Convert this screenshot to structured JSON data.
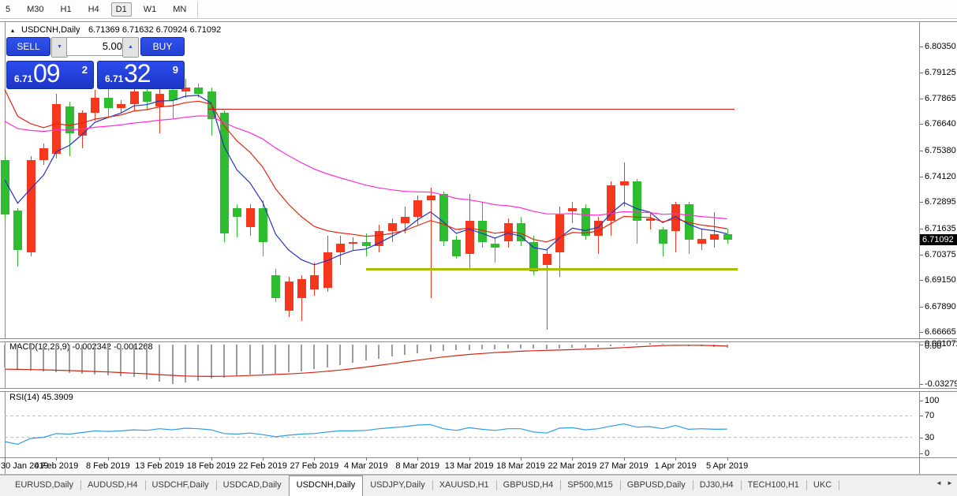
{
  "toolbar": {
    "timeframes": [
      "5",
      "M30",
      "H1",
      "H4",
      "D1",
      "W1",
      "MN"
    ],
    "active": "D1"
  },
  "title": {
    "collapse_icon": "▴",
    "symbol": "USDCNH,Daily",
    "ohlc_text": "6.71369 6.71632 6.70924 6.71092"
  },
  "trade_panel": {
    "sell_label": "SELL",
    "buy_label": "BUY",
    "volume": "5.00",
    "spin_down_icon": "▼",
    "spin_up_icon": "▲",
    "sell_price_prefix": "6.71",
    "sell_price_big": "09",
    "sell_price_sup": "2",
    "buy_price_prefix": "6.71",
    "buy_price_big": "32",
    "buy_price_sup": "9"
  },
  "price_axis": {
    "labels": [
      "6.80350",
      "6.79125",
      "6.77865",
      "6.76640",
      "6.75380",
      "6.74120",
      "6.72895",
      "6.71635",
      "6.70375",
      "6.69150",
      "6.67890",
      "6.66665"
    ],
    "current": "6.71092"
  },
  "indicators": {
    "macd": {
      "header": "MACD(12,26,9) -0.002342 -0.001268",
      "axis_max": "0.001072",
      "axis_zero": "0.00",
      "axis_min": "-0.032799"
    },
    "rsi": {
      "header": "RSI(14) 45.3909",
      "axis": [
        "100",
        "70",
        "30",
        "0"
      ]
    }
  },
  "date_axis": {
    "labels": [
      {
        "text": "30 Jan 2019",
        "index": 0
      },
      {
        "text": "4 Feb 2019",
        "index": 4
      },
      {
        "text": "8 Feb 2019",
        "index": 8
      },
      {
        "text": "13 Feb 2019",
        "index": 12
      },
      {
        "text": "18 Feb 2019",
        "index": 16
      },
      {
        "text": "22 Feb 2019",
        "index": 20
      },
      {
        "text": "27 Feb 2019",
        "index": 24
      },
      {
        "text": "4 Mar 2019",
        "index": 28
      },
      {
        "text": "8 Mar 2019",
        "index": 32
      },
      {
        "text": "13 Mar 2019",
        "index": 36
      },
      {
        "text": "18 Mar 2019",
        "index": 40
      },
      {
        "text": "22 Mar 2019",
        "index": 44
      },
      {
        "text": "27 Mar 2019",
        "index": 48
      },
      {
        "text": "1 Apr 2019",
        "index": 52
      },
      {
        "text": "5 Apr 2019",
        "index": 56
      }
    ]
  },
  "tabs": {
    "items": [
      "EURUSD,Daily",
      "AUDUSD,H4",
      "USDCHF,Daily",
      "USDCAD,Daily",
      "USDCNH,Daily",
      "USDJPY,Daily",
      "XAUUSD,H1",
      "GBPUSD,H4",
      "SP500,M15",
      "GBPUSD,Daily",
      "DJ30,H4",
      "TECH100,H1",
      "UKC"
    ],
    "active": "USDCNH,Daily",
    "scroll_left": "◄",
    "scroll_right": "►"
  },
  "colors": {
    "bull": "#f5381d",
    "bear": "#2ebd2e",
    "ma_fast": "#2431c7",
    "ma_mid": "#e8240c",
    "ma_slow": "#ff2fd0",
    "macd_hist": "#9c9c9c",
    "macd_signal": "#d42314",
    "rsi_line": "#2f9be3",
    "support": "#a9bf04",
    "resistance": "#d21616"
  },
  "chart_data": {
    "type": "candlestick",
    "symbol": "USDCNH",
    "timeframe": "Daily",
    "current_ohlc": {
      "open": 6.71369,
      "high": 6.71632,
      "low": 6.70924,
      "close": 6.71092
    },
    "y_axis_range": [
      6.6647,
      6.8145
    ],
    "candles": [
      {
        "d": "30 Jan",
        "o": 6.749,
        "h": 6.751,
        "l": 6.721,
        "c": 6.723
      },
      {
        "d": "31 Jan",
        "o": 6.725,
        "h": 6.726,
        "l": 6.698,
        "c": 6.706
      },
      {
        "d": "1 Feb",
        "o": 6.705,
        "h": 6.751,
        "l": 6.703,
        "c": 6.749
      },
      {
        "d": "3 Feb",
        "o": 6.749,
        "h": 6.757,
        "l": 6.747,
        "c": 6.755
      },
      {
        "d": "4 Feb",
        "o": 6.752,
        "h": 6.781,
        "l": 6.75,
        "c": 6.776
      },
      {
        "d": "5 Feb",
        "o": 6.775,
        "h": 6.777,
        "l": 6.751,
        "c": 6.762
      },
      {
        "d": "6 Feb",
        "o": 6.761,
        "h": 6.773,
        "l": 6.755,
        "c": 6.772
      },
      {
        "d": "7 Feb",
        "o": 6.772,
        "h": 6.783,
        "l": 6.768,
        "c": 6.779
      },
      {
        "d": "8 Feb",
        "o": 6.779,
        "h": 6.785,
        "l": 6.77,
        "c": 6.774
      },
      {
        "d": "10 Feb",
        "o": 6.774,
        "h": 6.778,
        "l": 6.772,
        "c": 6.776
      },
      {
        "d": "11 Feb",
        "o": 6.776,
        "h": 6.786,
        "l": 6.773,
        "c": 6.782
      },
      {
        "d": "12 Feb",
        "o": 6.782,
        "h": 6.786,
        "l": 6.773,
        "c": 6.777
      },
      {
        "d": "13 Feb",
        "o": 6.775,
        "h": 6.787,
        "l": 6.762,
        "c": 6.781
      },
      {
        "d": "14 Feb",
        "o": 6.783,
        "h": 6.785,
        "l": 6.769,
        "c": 6.778
      },
      {
        "d": "15 Feb",
        "o": 6.782,
        "h": 6.788,
        "l": 6.779,
        "c": 6.784
      },
      {
        "d": "17 Feb",
        "o": 6.784,
        "h": 6.786,
        "l": 6.779,
        "c": 6.781
      },
      {
        "d": "18 Feb",
        "o": 6.782,
        "h": 6.784,
        "l": 6.761,
        "c": 6.769
      },
      {
        "d": "19 Feb",
        "o": 6.772,
        "h": 6.773,
        "l": 6.71,
        "c": 6.714
      },
      {
        "d": "20 Feb",
        "o": 6.726,
        "h": 6.728,
        "l": 6.712,
        "c": 6.722
      },
      {
        "d": "21 Feb",
        "o": 6.717,
        "h": 6.728,
        "l": 6.713,
        "c": 6.726
      },
      {
        "d": "22 Feb",
        "o": 6.726,
        "h": 6.73,
        "l": 6.703,
        "c": 6.71
      },
      {
        "d": "24 Feb",
        "o": 6.694,
        "h": 6.697,
        "l": 6.681,
        "c": 6.683
      },
      {
        "d": "25 Feb",
        "o": 6.677,
        "h": 6.693,
        "l": 6.674,
        "c": 6.691
      },
      {
        "d": "26 Feb",
        "o": 6.683,
        "h": 6.694,
        "l": 6.672,
        "c": 6.692
      },
      {
        "d": "27 Feb",
        "o": 6.687,
        "h": 6.7,
        "l": 6.684,
        "c": 6.694
      },
      {
        "d": "28 Feb",
        "o": 6.688,
        "h": 6.713,
        "l": 6.686,
        "c": 6.705
      },
      {
        "d": "1 Mar",
        "o": 6.705,
        "h": 6.713,
        "l": 6.699,
        "c": 6.709
      },
      {
        "d": "3 Mar",
        "o": 6.709,
        "h": 6.712,
        "l": 6.706,
        "c": 6.71
      },
      {
        "d": "4 Mar",
        "o": 6.71,
        "h": 6.714,
        "l": 6.703,
        "c": 6.708
      },
      {
        "d": "5 Mar",
        "o": 6.708,
        "h": 6.718,
        "l": 6.705,
        "c": 6.715
      },
      {
        "d": "6 Mar",
        "o": 6.715,
        "h": 6.721,
        "l": 6.71,
        "c": 6.719
      },
      {
        "d": "7 Mar",
        "o": 6.719,
        "h": 6.727,
        "l": 6.714,
        "c": 6.722
      },
      {
        "d": "8 Mar",
        "o": 6.722,
        "h": 6.732,
        "l": 6.718,
        "c": 6.73
      },
      {
        "d": "10 Mar",
        "o": 6.73,
        "h": 6.736,
        "l": 6.683,
        "c": 6.732
      },
      {
        "d": "11 Mar",
        "o": 6.733,
        "h": 6.734,
        "l": 6.708,
        "c": 6.71
      },
      {
        "d": "12 Mar",
        "o": 6.711,
        "h": 6.713,
        "l": 6.702,
        "c": 6.703
      },
      {
        "d": "13 Mar",
        "o": 6.704,
        "h": 6.733,
        "l": 6.697,
        "c": 6.72
      },
      {
        "d": "14 Mar",
        "o": 6.72,
        "h": 6.729,
        "l": 6.707,
        "c": 6.71
      },
      {
        "d": "15 Mar",
        "o": 6.709,
        "h": 6.712,
        "l": 6.7,
        "c": 6.707
      },
      {
        "d": "17 Mar",
        "o": 6.71,
        "h": 6.721,
        "l": 6.707,
        "c": 6.719
      },
      {
        "d": "18 Mar",
        "o": 6.719,
        "h": 6.722,
        "l": 6.708,
        "c": 6.71
      },
      {
        "d": "19 Mar",
        "o": 6.71,
        "h": 6.713,
        "l": 6.694,
        "c": 6.696
      },
      {
        "d": "20 Mar",
        "o": 6.699,
        "h": 6.706,
        "l": 6.668,
        "c": 6.704
      },
      {
        "d": "21 Mar",
        "o": 6.705,
        "h": 6.727,
        "l": 6.693,
        "c": 6.723
      },
      {
        "d": "22 Mar",
        "o": 6.7245,
        "h": 6.729,
        "l": 6.719,
        "c": 6.726
      },
      {
        "d": "24 Mar",
        "o": 6.726,
        "h": 6.728,
        "l": 6.711,
        "c": 6.713
      },
      {
        "d": "25 Mar",
        "o": 6.713,
        "h": 6.722,
        "l": 6.704,
        "c": 6.72
      },
      {
        "d": "26 Mar",
        "o": 6.72,
        "h": 6.739,
        "l": 6.713,
        "c": 6.737
      },
      {
        "d": "27 Mar",
        "o": 6.737,
        "h": 6.748,
        "l": 6.727,
        "c": 6.739
      },
      {
        "d": "28 Mar",
        "o": 6.739,
        "h": 6.74,
        "l": 6.709,
        "c": 6.72
      },
      {
        "d": "29 Mar",
        "o": 6.72,
        "h": 6.724,
        "l": 6.716,
        "c": 6.721
      },
      {
        "d": "31 Mar",
        "o": 6.716,
        "h": 6.717,
        "l": 6.703,
        "c": 6.709
      },
      {
        "d": "1 Apr",
        "o": 6.715,
        "h": 6.729,
        "l": 6.705,
        "c": 6.728
      },
      {
        "d": "2 Apr",
        "o": 6.728,
        "h": 6.729,
        "l": 6.704,
        "c": 6.711
      },
      {
        "d": "3 Apr",
        "o": 6.709,
        "h": 6.716,
        "l": 6.706,
        "c": 6.7115
      },
      {
        "d": "4 Apr",
        "o": 6.7108,
        "h": 6.724,
        "l": 6.707,
        "c": 6.7135
      },
      {
        "d": "5 Apr",
        "o": 6.71369,
        "h": 6.71632,
        "l": 6.70924,
        "c": 6.71092
      }
    ],
    "moving_averages": [
      {
        "name": "ma-fast-blue",
        "period": 5,
        "seed": 6.748
      },
      {
        "name": "ma-mid-red",
        "period": 11,
        "seed": 6.795
      },
      {
        "name": "ma-slow-magenta",
        "period": 34,
        "seed": 6.7705
      }
    ],
    "hlines": [
      {
        "name": "resistance-line",
        "price": 6.7737,
        "from_index": 15.7,
        "to_index": 56.6,
        "thickness": 1,
        "color_key": "resistance"
      },
      {
        "name": "support-line",
        "price": 6.6966,
        "from_index": 28.0,
        "to_index": 56.8,
        "thickness": 3,
        "color_key": "support"
      }
    ],
    "macd": {
      "params": [
        12,
        26,
        9
      ],
      "value": -0.002342,
      "signal_value": -0.001268,
      "range": [
        -0.032799,
        0.001072
      ],
      "histogram": [
        -0.019,
        -0.0205,
        -0.0215,
        -0.0222,
        -0.0228,
        -0.0235,
        -0.0242,
        -0.0248,
        -0.0255,
        -0.0262,
        -0.0268,
        -0.029,
        -0.031,
        -0.0328,
        -0.0318,
        -0.03,
        -0.0285,
        -0.0275,
        -0.0262,
        -0.025,
        -0.0245,
        -0.024,
        -0.0232,
        -0.022,
        -0.0205,
        -0.0188,
        -0.0168,
        -0.015,
        -0.0133,
        -0.0117,
        -0.0101,
        -0.0086,
        -0.0071,
        -0.0057,
        -0.005,
        -0.0048,
        -0.0043,
        -0.004,
        -0.0038,
        -0.0036,
        -0.0034,
        -0.0036,
        -0.0038,
        -0.0033,
        -0.0028,
        -0.0025,
        -0.0019,
        -0.0011,
        -0.0003,
        0.0007,
        0.0011,
        0.0004,
        -0.0004,
        -0.001,
        -0.0016,
        -0.002,
        -0.00234
      ],
      "signal": [
        -0.0205,
        -0.0206,
        -0.0208,
        -0.021,
        -0.0213,
        -0.0216,
        -0.022,
        -0.0224,
        -0.0228,
        -0.0233,
        -0.0238,
        -0.0243,
        -0.025,
        -0.0256,
        -0.0261,
        -0.0264,
        -0.0265,
        -0.0264,
        -0.0261,
        -0.0257,
        -0.0253,
        -0.0249,
        -0.0244,
        -0.0238,
        -0.0231,
        -0.0222,
        -0.0212,
        -0.02,
        -0.0187,
        -0.0173,
        -0.0159,
        -0.0144,
        -0.013,
        -0.0116,
        -0.0103,
        -0.0092,
        -0.0082,
        -0.0074,
        -0.0067,
        -0.0061,
        -0.0055,
        -0.0051,
        -0.0048,
        -0.0045,
        -0.0042,
        -0.0038,
        -0.0034,
        -0.003,
        -0.0025,
        -0.0019,
        -0.0013,
        -0.0008,
        -0.0006,
        -0.0005,
        -0.0006,
        -0.0009,
        -0.00127
      ]
    },
    "rsi": {
      "period": 14,
      "value": 45.3909,
      "levels": [
        70,
        30
      ],
      "series": [
        22,
        17,
        28,
        30,
        37,
        36,
        39,
        42,
        41,
        42,
        44,
        43,
        46,
        44,
        47,
        46,
        44,
        37,
        36,
        38,
        35,
        31,
        34,
        36,
        37,
        40,
        42,
        42,
        43,
        46,
        48,
        50,
        53,
        54,
        46,
        43,
        48,
        45,
        43,
        46,
        46,
        40,
        38,
        47,
        48,
        44,
        46,
        51,
        55,
        49,
        50,
        46,
        52,
        45,
        46,
        45,
        45.39
      ]
    }
  }
}
